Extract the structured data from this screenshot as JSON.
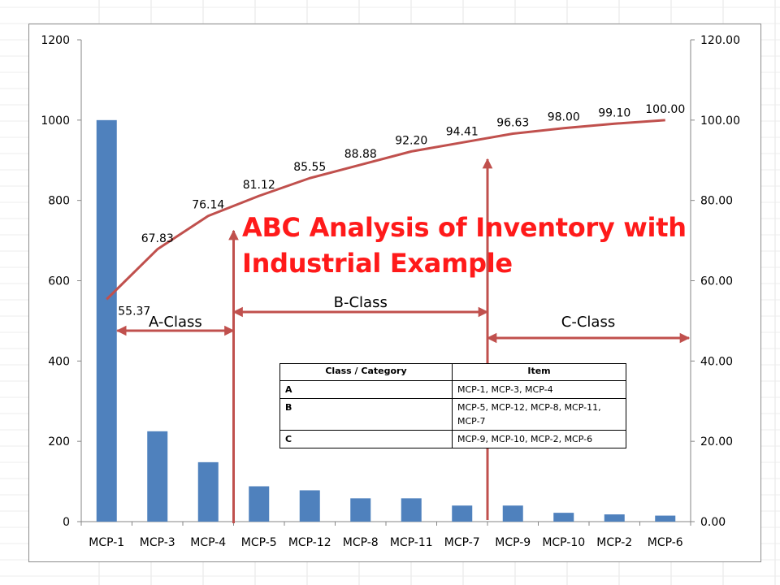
{
  "chart_data": {
    "type": "bar",
    "title": "ABC Analysis of Inventory with Industrial Example",
    "categories": [
      "MCP-1",
      "MCP-3",
      "MCP-4",
      "MCP-5",
      "MCP-12",
      "MCP-8",
      "MCP-11",
      "MCP-7",
      "MCP-9",
      "MCP-10",
      "MCP-2",
      "MCP-6"
    ],
    "y_ticks": [
      "0",
      "200",
      "400",
      "600",
      "800",
      "1000",
      "1200"
    ],
    "y2_ticks": [
      "0.00",
      "20.00",
      "40.00",
      "60.00",
      "80.00",
      "100.00",
      "120.00"
    ],
    "ylim": [
      0,
      1200
    ],
    "y2lim": [
      0,
      120
    ],
    "grid": false,
    "series": [
      {
        "type": "bar",
        "color": "#4f81bd",
        "values": [
          1000,
          225,
          148,
          88,
          78,
          58,
          58,
          40,
          40,
          22,
          18,
          15
        ]
      },
      {
        "type": "line",
        "axis": "secondary",
        "color": "#c0504d",
        "values": [
          55.37,
          67.83,
          76.14,
          81.12,
          85.55,
          88.88,
          92.2,
          94.41,
          96.63,
          98.0,
          99.1,
          100.0
        ],
        "labels": [
          "55.37",
          "67.83",
          "76.14",
          "81.12",
          "85.55",
          "88.88",
          "92.20",
          "94.41",
          "96.63",
          "98.00",
          "99.10",
          "100.00"
        ]
      }
    ],
    "classes": [
      {
        "label": "A-Class",
        "from_category": "MCP-1",
        "to_category": "MCP-4"
      },
      {
        "label": "B-Class",
        "from_category": "MCP-4",
        "to_category": "MCP-7"
      },
      {
        "label": "C-Class",
        "from_category": "MCP-7",
        "to_category": "MCP-6"
      }
    ],
    "table": {
      "headers": [
        "Class / Category",
        "Item"
      ],
      "rows": [
        {
          "category": "A",
          "items": "MCP-1, MCP-3, MCP-4"
        },
        {
          "category": "B",
          "items": "MCP-5, MCP-12, MCP-8, MCP-11, MCP-7"
        },
        {
          "category": "C",
          "items": "MCP-9, MCP-10, MCP-2, MCP-6"
        }
      ]
    }
  },
  "colors": {
    "bar": "#4f81bd",
    "line": "#c0504d",
    "arrow": "#c0504d",
    "title": "#ff1a1a"
  }
}
